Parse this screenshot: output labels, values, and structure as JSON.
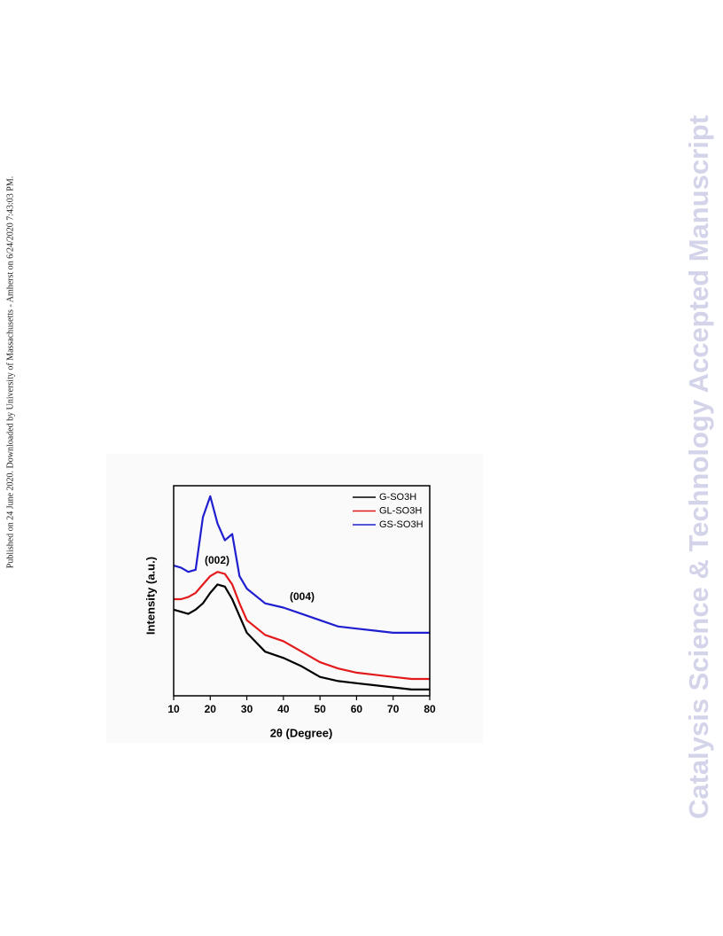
{
  "side_note": "Published on 24 June 2020. Downloaded by University of Massachusetts - Amherst on 6/24/2020 7:43:03 PM.",
  "watermark": "Catalysis Science & Technology Accepted Manuscript",
  "chart_data": {
    "type": "line",
    "x_label": "2θ (Degree)",
    "y_label": "Intensity (a.u.)",
    "x": [
      10,
      12,
      14,
      16,
      18,
      20,
      22,
      24,
      26,
      28,
      30,
      35,
      40,
      45,
      50,
      55,
      60,
      65,
      70,
      75,
      80
    ],
    "series": [
      {
        "name": "G-SO3H",
        "color": "#000000",
        "values": [
          41,
          40,
          39,
          41,
          44,
          49,
          53,
          52,
          46,
          38,
          30,
          21,
          18,
          14,
          9,
          7,
          6,
          5,
          4,
          3,
          3
        ]
      },
      {
        "name": "GL-SO3H",
        "color": "#e31a1c",
        "values": [
          46,
          46,
          47,
          49,
          53,
          57,
          59,
          58,
          53,
          44,
          36,
          29,
          26,
          21,
          16,
          13,
          11,
          10,
          9,
          8,
          8
        ]
      },
      {
        "name": "GS-SO3H",
        "color": "#1f1fd0",
        "values": [
          62,
          61,
          59,
          60,
          85,
          95,
          82,
          74,
          77,
          57,
          51,
          44,
          42,
          39,
          36,
          33,
          32,
          31,
          30,
          30,
          30
        ]
      }
    ],
    "annotations": [
      "(002)",
      "(004)"
    ],
    "xlim": [
      10,
      80
    ],
    "xticks": [
      10,
      20,
      30,
      40,
      50,
      60,
      70,
      80
    ],
    "ylim": [
      0,
      100
    ],
    "legend": "upper right"
  }
}
